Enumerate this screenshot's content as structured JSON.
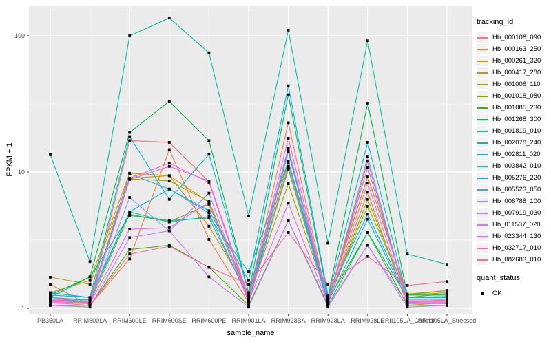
{
  "figure": {
    "x_axis_title": "sample_name",
    "y_axis_title": "FPKM + 1"
  },
  "legend": {
    "tracking_title": "tracking_id",
    "quant_title": "quant_status",
    "quant_items": [
      {
        "label": "OK",
        "marker": "black-square",
        "color": "#000000"
      }
    ]
  },
  "colors": {
    "panel_bg": "#EBEBEB",
    "grid": "#FFFFFF",
    "tick_text": "#4D4D4D",
    "tick_mark": "#333333",
    "legend_key_bg": "#F2F2F2",
    "point": "#000000"
  },
  "chart_data": {
    "type": "line",
    "title": "",
    "xlabel": "sample_name",
    "ylabel": "FPKM + 1",
    "y_scale": "log10",
    "y_ticks": [
      1,
      10,
      100
    ],
    "y_minor_ticks": [
      3.162,
      31.62
    ],
    "ylim": [
      0.92,
      165
    ],
    "grid": true,
    "legend_position": "right",
    "point_marker": "black-square",
    "quant_status_all": "OK",
    "categories": [
      "PB350LA",
      "RRIM600LA",
      "RRIM600LE",
      "RRIM600SE",
      "RRIM600PE",
      "RRIM901LA",
      "RRIM928BA",
      "RRIM928LA",
      "RRIM928LE",
      "RRII105LA_Control",
      "RRII105LA_Stressed"
    ],
    "series": [
      {
        "name": "Hb_000108_090",
        "color": "#F8766D",
        "values": [
          1.2,
          1.1,
          17.0,
          16.5,
          8.5,
          1.2,
          23.0,
          1.1,
          12.9,
          1.1,
          1.15
        ]
      },
      {
        "name": "Hb_000163_250",
        "color": "#EA8331",
        "values": [
          1.5,
          1.05,
          2.3,
          14.6,
          3.2,
          1.1,
          11.0,
          1.1,
          7.1,
          1.05,
          1.1
        ]
      },
      {
        "name": "Hb_000261_320",
        "color": "#D89000",
        "values": [
          1.3,
          1.6,
          9.8,
          9.4,
          4.0,
          1.3,
          11.6,
          1.15,
          9.2,
          1.25,
          1.35
        ]
      },
      {
        "name": "Hb_000417_280",
        "color": "#C09B00",
        "values": [
          1.69,
          1.5,
          9.0,
          9.4,
          6.0,
          1.25,
          12.0,
          1.2,
          9.2,
          1.25,
          1.3
        ]
      },
      {
        "name": "Hb_001008_110",
        "color": "#A3A500",
        "values": [
          1.3,
          1.2,
          8.9,
          8.6,
          6.1,
          1.2,
          8.2,
          1.15,
          5.6,
          1.27,
          1.35
        ]
      },
      {
        "name": "Hb_001018_080",
        "color": "#7CAE00",
        "values": [
          1.15,
          1.1,
          4.9,
          4.3,
          5.8,
          1.15,
          10.5,
          1.1,
          6.3,
          1.2,
          1.28
        ]
      },
      {
        "name": "Hb_001085_230",
        "color": "#39B600",
        "values": [
          1.05,
          1.05,
          2.7,
          2.9,
          2.0,
          1.05,
          4.4,
          1.05,
          3.6,
          1.05,
          1.05
        ]
      },
      {
        "name": "Hb_001268_300",
        "color": "#00BB4E",
        "values": [
          1.25,
          1.7,
          19.5,
          33.0,
          17.0,
          1.3,
          37.0,
          1.2,
          32.0,
          1.25,
          1.25
        ]
      },
      {
        "name": "Hb_001819_010",
        "color": "#00BF7D",
        "values": [
          1.2,
          1.7,
          4.8,
          4.4,
          4.6,
          1.2,
          10.8,
          1.15,
          3.6,
          1.2,
          1.22
        ]
      },
      {
        "name": "Hb_002078_240",
        "color": "#00C1A3",
        "values": [
          13.4,
          2.2,
          100.0,
          135.0,
          75.0,
          4.75,
          110.0,
          3.0,
          92.0,
          2.5,
          2.1
        ]
      },
      {
        "name": "Hb_002811_020",
        "color": "#00BFC4",
        "values": [
          1.15,
          1.15,
          5.1,
          4.3,
          4.7,
          1.85,
          12.0,
          1.1,
          4.5,
          1.15,
          1.15
        ]
      },
      {
        "name": "Hb_003842_010",
        "color": "#00BAE0",
        "values": [
          1.25,
          1.2,
          18.2,
          6.3,
          13.5,
          1.3,
          14.5,
          1.2,
          16.5,
          1.2,
          1.2
        ]
      },
      {
        "name": "Hb_005276_220",
        "color": "#00B0F6",
        "values": [
          1.3,
          1.2,
          5.1,
          7.5,
          5.2,
          1.6,
          43.0,
          1.25,
          4.9,
          1.2,
          1.2
        ]
      },
      {
        "name": "Hb_005523_050",
        "color": "#35A2FF",
        "values": [
          1.2,
          1.15,
          9.7,
          7.5,
          5.0,
          1.15,
          14.0,
          1.1,
          12.0,
          1.12,
          1.12
        ]
      },
      {
        "name": "Hb_006788_100",
        "color": "#9590FF",
        "values": [
          1.1,
          1.1,
          6.5,
          3.7,
          7.0,
          1.1,
          11.0,
          1.05,
          2.9,
          1.08,
          1.08
        ]
      },
      {
        "name": "Hb_007919_030",
        "color": "#C77CFF",
        "values": [
          1.05,
          1.02,
          3.3,
          3.7,
          1.7,
          1.02,
          4.4,
          1.02,
          2.9,
          1.02,
          1.05
        ]
      },
      {
        "name": "Hb_011537_020",
        "color": "#E76BF3",
        "values": [
          1.1,
          1.08,
          3.8,
          3.9,
          6.0,
          1.12,
          5.9,
          1.08,
          8.3,
          1.1,
          1.1
        ]
      },
      {
        "name": "Hb_023344_130",
        "color": "#FA62DB",
        "values": [
          1.12,
          1.1,
          9.0,
          11.6,
          8.4,
          1.15,
          17.7,
          1.12,
          10.8,
          1.12,
          1.12
        ]
      },
      {
        "name": "Hb_032717_010",
        "color": "#FF61CC",
        "values": [
          1.15,
          1.12,
          8.8,
          11.0,
          8.6,
          1.2,
          15.0,
          1.15,
          10.8,
          1.15,
          1.15
        ]
      },
      {
        "name": "Hb_082683_010",
        "color": "#FF6A98",
        "values": [
          1.1,
          1.05,
          2.5,
          2.85,
          2.0,
          1.5,
          3.6,
          1.5,
          2.4,
          1.47,
          1.57
        ]
      }
    ]
  }
}
